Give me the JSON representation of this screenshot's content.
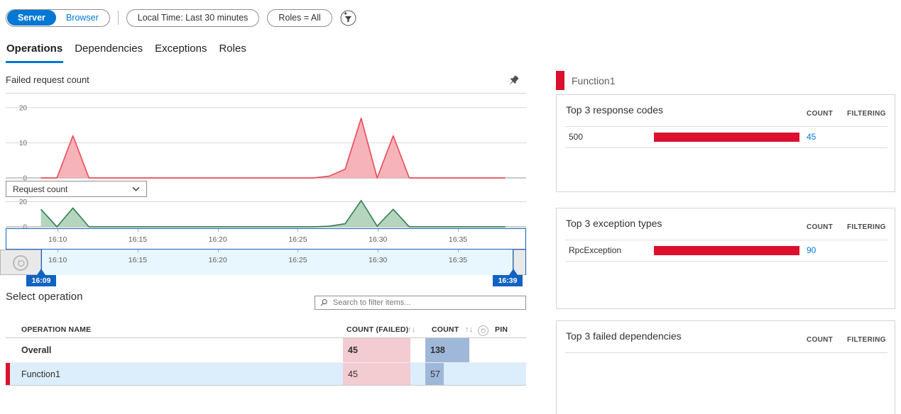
{
  "colors": {
    "accent-blue": "#0078d4",
    "accent-red": "#dc0f2d",
    "brush-blue": "#1262c4",
    "failed-bar-pink": "#f3ccd2",
    "count-bar-blue": "#9fb8d9",
    "selected-row-blue": "#dcedfb"
  },
  "toolbar": {
    "server": "Server",
    "browser": "Browser",
    "time_filter": "Local Time: Last 30 minutes",
    "roles_filter": "Roles = All"
  },
  "icons": {
    "filter": "funnel-plus",
    "pin": "pushpin",
    "reset_zoom": "undo-circle",
    "search": "magnifier",
    "dropdown": "chevron-down"
  },
  "tabs": [
    {
      "label": "Operations",
      "active": true
    },
    {
      "label": "Dependencies",
      "active": false
    },
    {
      "label": "Exceptions",
      "active": false
    },
    {
      "label": "Roles",
      "active": false
    }
  ],
  "failed_chart": {
    "title": "Failed request count"
  },
  "metric_dropdown": {
    "selected": "Request count"
  },
  "brush": {
    "start_label": "16:09",
    "end_label": "16:39",
    "start_min": 9,
    "end_min": 39
  },
  "operations": {
    "heading": "Select operation",
    "search_placeholder": "Search to filter items...",
    "headers": {
      "name": "OPERATION NAME",
      "failed": "COUNT (FAILED)",
      "count": "COUNT",
      "pin": "PIN"
    },
    "sort_icon": "↑↓",
    "failed_max": 45,
    "count_max": 138,
    "rows": [
      {
        "name": "Overall",
        "failed": 45,
        "count": 138,
        "bold": true,
        "selected": false
      },
      {
        "name": "Function1",
        "failed": 45,
        "count": 57,
        "bold": false,
        "selected": true
      }
    ]
  },
  "details": {
    "header": "Function1",
    "count_header": "COUNT",
    "filtering_header": "FILTERING",
    "cards": [
      {
        "title": "Top 3 response codes",
        "rows": [
          {
            "name": "500",
            "count": 45
          }
        ]
      },
      {
        "title": "Top 3 exception types",
        "rows": [
          {
            "name": "RpcException",
            "count": 90
          }
        ]
      },
      {
        "title": "Top 3 failed dependencies",
        "rows": []
      }
    ]
  },
  "chart_data": [
    {
      "type": "area",
      "title": "Failed request count",
      "ylim": [
        0,
        22
      ],
      "yticks": [
        0,
        10,
        20
      ],
      "x_domain_minutes_after_1600": [
        6.8,
        39.3
      ],
      "xticks": [
        {
          "minute": 10,
          "label": "16:10"
        },
        {
          "minute": 15,
          "label": "16:15"
        },
        {
          "minute": 20,
          "label": "16:20"
        },
        {
          "minute": 25,
          "label": "16:25"
        },
        {
          "minute": 30,
          "label": "16:30"
        },
        {
          "minute": 35,
          "label": "16:35"
        }
      ],
      "series": [
        {
          "name": "Failed request count",
          "color": "#e8505e",
          "fill": "#f4a6ae",
          "points": [
            [
              9,
              0
            ],
            [
              10,
              0
            ],
            [
              11,
              12
            ],
            [
              12,
              0
            ],
            [
              26,
              0
            ],
            [
              27,
              0.5
            ],
            [
              28,
              2.5
            ],
            [
              29,
              17
            ],
            [
              30,
              0
            ],
            [
              31,
              12
            ],
            [
              32,
              0
            ],
            [
              38,
              0
            ]
          ]
        }
      ]
    },
    {
      "type": "area",
      "title": "Request count",
      "ylim": [
        0,
        22
      ],
      "yticks": [
        0,
        20
      ],
      "x_domain_minutes_after_1600": [
        6.8,
        39.3
      ],
      "xticks": [
        {
          "minute": 10,
          "label": "16:10"
        },
        {
          "minute": 15,
          "label": "16:15"
        },
        {
          "minute": 20,
          "label": "16:20"
        },
        {
          "minute": 25,
          "label": "16:25"
        },
        {
          "minute": 30,
          "label": "16:30"
        },
        {
          "minute": 35,
          "label": "16:35"
        }
      ],
      "series": [
        {
          "name": "Request count",
          "color": "#37835b",
          "fill": "#a9ceb4",
          "points": [
            [
              9,
              14
            ],
            [
              10,
              0
            ],
            [
              11,
              15
            ],
            [
              12,
              0
            ],
            [
              26,
              0
            ],
            [
              27,
              0.5
            ],
            [
              28,
              2.5
            ],
            [
              29,
              21
            ],
            [
              30,
              0.5
            ],
            [
              31,
              14
            ],
            [
              32,
              0
            ],
            [
              38,
              0
            ]
          ]
        }
      ]
    }
  ]
}
